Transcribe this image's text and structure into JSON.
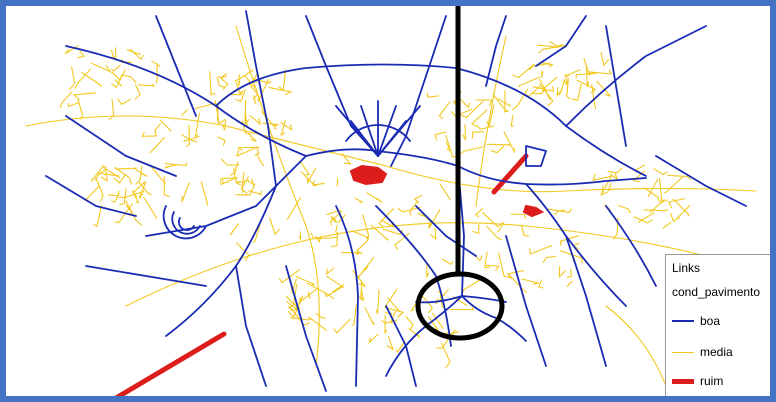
{
  "map": {
    "colors": {
      "boa": "#1a2bb3",
      "media": "#f2c81f",
      "ruim": "#dd1c1c",
      "frame": "#4472c4",
      "marker": "#000000"
    },
    "callout": {
      "shape": "circle-with-vertical-line",
      "meaning": "highlighted interchange"
    }
  },
  "legend": {
    "title": "Links",
    "field": "cond_pavimento",
    "items": [
      {
        "label": "boa",
        "color": "#1a2bb3",
        "style": "thin-line"
      },
      {
        "label": "media",
        "color": "#f2c81f",
        "style": "thin-line"
      },
      {
        "label": "ruim",
        "color": "#dd1c1c",
        "style": "thick-line"
      }
    ]
  }
}
